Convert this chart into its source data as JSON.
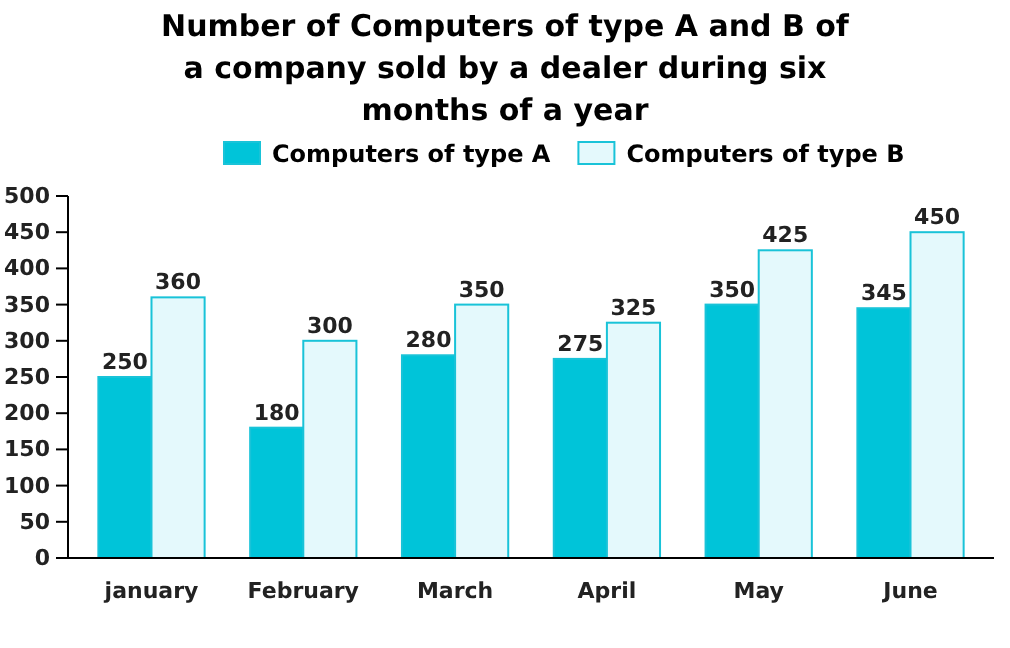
{
  "chart_data": {
    "type": "bar",
    "title": "Number of Computers of type A and B of a company sold by a dealer during six months of a year",
    "categories": [
      "january",
      "February",
      "March",
      "April",
      "May",
      "June"
    ],
    "series": [
      {
        "name": "Computers of type A",
        "color": "#00c4d9",
        "values": [
          250,
          180,
          280,
          275,
          350,
          345
        ]
      },
      {
        "name": "Computers of type B",
        "color": "#e4f9fc",
        "values": [
          360,
          300,
          350,
          325,
          425,
          450
        ]
      }
    ],
    "ylim": [
      0,
      500
    ],
    "yticks": [
      0,
      50,
      100,
      150,
      200,
      250,
      300,
      350,
      400,
      450,
      500
    ],
    "data_labels": true,
    "legend": "top",
    "grid": false
  }
}
